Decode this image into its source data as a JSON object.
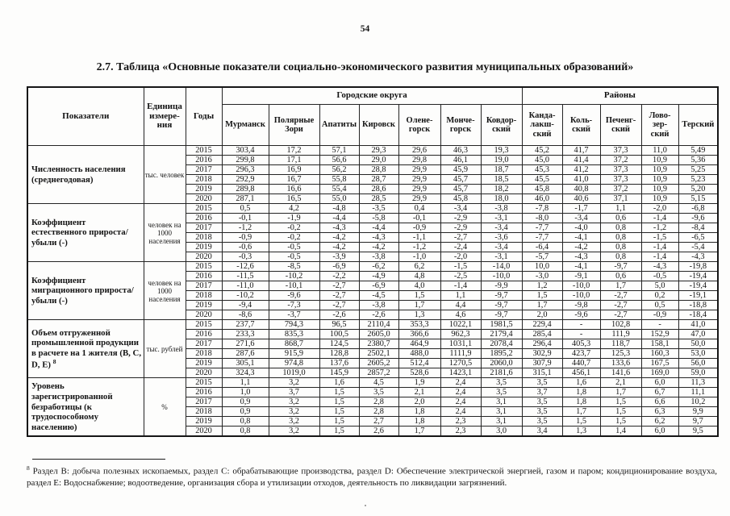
{
  "page": {
    "number": "54",
    "title": "2.7. Таблица «Основные показатели социально-экономического развития муниципальных образований»"
  },
  "table": {
    "head": {
      "indicators": "Показатели",
      "unit": "Единица\nизмере-\nния",
      "years": "Годы",
      "groups": [
        "Городские округа",
        "Районы"
      ]
    },
    "columns": [
      "Мурманск",
      "Полярные\nЗори",
      "Апатиты",
      "Кировск",
      "Олене-\nгорск",
      "Монче-\nгорск",
      "Ковдор-\nский",
      "Канда-\nлакш-\nский",
      "Коль-\nский",
      "Печенг-\nский",
      "Лово-\nзер-\nский",
      "Терский"
    ],
    "blocks": [
      {
        "indicator": "Численность населения (среднегодовая)",
        "unit": "тыс. человек",
        "rows": [
          {
            "year": "2015",
            "values": [
              "303,4",
              "17,2",
              "57,1",
              "29,3",
              "29,6",
              "46,3",
              "19,3",
              "45,2",
              "41,7",
              "37,3",
              "11,0",
              "5,49"
            ]
          },
          {
            "year": "2016",
            "values": [
              "299,8",
              "17,1",
              "56,6",
              "29,0",
              "29,8",
              "46,1",
              "19,0",
              "45,0",
              "41,4",
              "37,2",
              "10,9",
              "5,36"
            ]
          },
          {
            "year": "2017",
            "values": [
              "296,3",
              "16,9",
              "56,2",
              "28,8",
              "29,9",
              "45,9",
              "18,7",
              "45,3",
              "41,2",
              "37,3",
              "10,9",
              "5,25"
            ]
          },
          {
            "year": "2018",
            "values": [
              "292,9",
              "16,7",
              "55,8",
              "28,7",
              "29,9",
              "45,7",
              "18,5",
              "45,5",
              "41,0",
              "37,3",
              "10,9",
              "5,23"
            ]
          },
          {
            "year": "2019",
            "values": [
              "289,8",
              "16,6",
              "55,4",
              "28,6",
              "29,9",
              "45,7",
              "18,2",
              "45,8",
              "40,8",
              "37,2",
              "10,9",
              "5,20"
            ]
          },
          {
            "year": "2020",
            "values": [
              "287,1",
              "16,5",
              "55,0",
              "28,5",
              "29,9",
              "45,8",
              "18,0",
              "46,0",
              "40,6",
              "37,1",
              "10,9",
              "5,15"
            ]
          }
        ]
      },
      {
        "indicator": "Коэффициент естественного прироста/убыли (-)",
        "unit": "человек на 1000 населения",
        "rows": [
          {
            "year": "2015",
            "values": [
              "0,5",
              "4,2",
              "-4,8",
              "-3,5",
              "0,4",
              "-3,4",
              "-3,8",
              "-7,8",
              "-1,7",
              "1,1",
              "-2,0",
              "-6,8"
            ]
          },
          {
            "year": "2016",
            "values": [
              "-0,1",
              "-1,9",
              "-4,4",
              "-5,8",
              "-0,1",
              "-2,9",
              "-3,1",
              "-8,0",
              "-3,4",
              "0,6",
              "-1,4",
              "-9,6"
            ]
          },
          {
            "year": "2017",
            "values": [
              "-1,2",
              "-0,2",
              "-4,3",
              "-4,4",
              "-0,9",
              "-2,9",
              "-3,4",
              "-7,7",
              "-4,0",
              "0,8",
              "-1,2",
              "-8,4"
            ]
          },
          {
            "year": "2018",
            "values": [
              "-0,9",
              "-0,2",
              "-4,2",
              "-4,3",
              "-1,1",
              "-2,7",
              "-3,6",
              "-7,7",
              "-4,1",
              "0,8",
              "-1,5",
              "-6,5"
            ]
          },
          {
            "year": "2019",
            "values": [
              "-0,6",
              "-0,5",
              "-4,2",
              "-4,2",
              "-1,2",
              "-2,4",
              "-3,4",
              "-6,4",
              "-4,2",
              "0,8",
              "-1,4",
              "-5,4"
            ]
          },
          {
            "year": "2020",
            "values": [
              "-0,3",
              "-0,5",
              "-3,9",
              "-3,8",
              "-1,0",
              "-2,0",
              "-3,1",
              "-5,7",
              "-4,3",
              "0,8",
              "-1,4",
              "-4,3"
            ]
          }
        ]
      },
      {
        "indicator": "Коэффициент миграционного прироста/убыли (-)",
        "unit": "человек на 1000 населения",
        "rows": [
          {
            "year": "2015",
            "values": [
              "-12,6",
              "-8,5",
              "-6,9",
              "-6,2",
              "6,2",
              "-1,5",
              "-14,0",
              "10,0",
              "-4,1",
              "-9,7",
              "-4,3",
              "-19,8"
            ]
          },
          {
            "year": "2016",
            "values": [
              "-11,5",
              "-10,2",
              "-2,2",
              "-4,9",
              "4,8",
              "-2,5",
              "-10,0",
              "-3,0",
              "-9,1",
              "0,6",
              "-0,5",
              "-19,4"
            ]
          },
          {
            "year": "2017",
            "values": [
              "-11,0",
              "-10,1",
              "-2,7",
              "-6,9",
              "4,0",
              "-1,4",
              "-9,9",
              "1,2",
              "-10,0",
              "1,7",
              "5,0",
              "-19,4"
            ]
          },
          {
            "year": "2018",
            "values": [
              "-10,2",
              "-9,6",
              "-2,7",
              "-4,5",
              "1,5",
              "1,1",
              "-9,7",
              "1,5",
              "-10,0",
              "-2,7",
              "0,2",
              "-19,1"
            ]
          },
          {
            "year": "2019",
            "values": [
              "-9,4",
              "-7,3",
              "-2,7",
              "-3,8",
              "1,7",
              "4,4",
              "-9,7",
              "1,7",
              "-9,8",
              "-2,7",
              "0,5",
              "-18,8"
            ]
          },
          {
            "year": "2020",
            "values": [
              "-8,6",
              "-3,7",
              "-2,6",
              "-2,6",
              "1,3",
              "4,6",
              "-9,7",
              "2,0",
              "-9,6",
              "-2,7",
              "-0,9",
              "-18,4"
            ]
          }
        ]
      },
      {
        "indicator": "Объем отгруженной промышленной продукции в расчете на 1 жителя (B, C, D, Е)",
        "footnote_ref": "8",
        "unit": "тыс. рублей",
        "rows": [
          {
            "year": "2015",
            "values": [
              "237,7",
              "794,3",
              "96,5",
              "2110,4",
              "353,3",
              "1022,1",
              "1981,5",
              "229,4",
              "-",
              "102,8",
              "-",
              "41,0"
            ]
          },
          {
            "year": "2016",
            "values": [
              "233,3",
              "835,3",
              "100,5",
              "2605,0",
              "366,6",
              "962,3",
              "2179,4",
              "285,4",
              "-",
              "111,9",
              "152,9",
              "47,0"
            ]
          },
          {
            "year": "2017",
            "values": [
              "271,6",
              "868,7",
              "124,5",
              "2380,7",
              "464,9",
              "1031,1",
              "2078,4",
              "296,4",
              "405,3",
              "118,7",
              "158,1",
              "50,0"
            ]
          },
          {
            "year": "2018",
            "values": [
              "287,6",
              "915,9",
              "128,8",
              "2502,1",
              "488,0",
              "1111,9",
              "1895,2",
              "302,9",
              "423,7",
              "125,3",
              "160,3",
              "53,0"
            ]
          },
          {
            "year": "2019",
            "values": [
              "305,1",
              "974,8",
              "137,6",
              "2605,2",
              "512,4",
              "1270,5",
              "2060,0",
              "307,9",
              "440,7",
              "133,6",
              "167,5",
              "56,0"
            ]
          },
          {
            "year": "2020",
            "values": [
              "324,3",
              "1019,0",
              "145,9",
              "2857,2",
              "528,6",
              "1423,1",
              "2181,6",
              "315,1",
              "456,1",
              "141,6",
              "169,0",
              "59,0"
            ]
          }
        ]
      },
      {
        "indicator": "Уровень зарегистрированной безработицы (к трудоспособному населению)",
        "unit": "%",
        "rows": [
          {
            "year": "2015",
            "values": [
              "1,1",
              "3,2",
              "1,6",
              "4,5",
              "1,9",
              "2,4",
              "3,5",
              "3,5",
              "1,6",
              "2,1",
              "6,0",
              "11,3"
            ]
          },
          {
            "year": "2016",
            "values": [
              "1,0",
              "3,7",
              "1,5",
              "3,5",
              "2,1",
              "2,4",
              "3,5",
              "3,7",
              "1,8",
              "1,7",
              "6,7",
              "11,1"
            ]
          },
          {
            "year": "2017",
            "values": [
              "0,9",
              "3,2",
              "1,5",
              "2,8",
              "2,0",
              "2,4",
              "3,1",
              "3,5",
              "1,8",
              "1,5",
              "6,6",
              "10,2"
            ]
          },
          {
            "year": "2018",
            "values": [
              "0,9",
              "3,2",
              "1,5",
              "2,8",
              "1,8",
              "2,4",
              "3,1",
              "3,5",
              "1,7",
              "1,5",
              "6,3",
              "9,9"
            ]
          },
          {
            "year": "2019",
            "values": [
              "0,8",
              "3,2",
              "1,5",
              "2,7",
              "1,8",
              "2,3",
              "3,1",
              "3,5",
              "1,5",
              "1,5",
              "6,2",
              "9,7"
            ]
          },
          {
            "year": "2020",
            "values": [
              "0,8",
              "3,2",
              "1,5",
              "2,6",
              "1,7",
              "2,3",
              "3,0",
              "3,4",
              "1,3",
              "1,4",
              "6,0",
              "9,5"
            ]
          }
        ]
      }
    ]
  },
  "footnote": {
    "marker": "8",
    "text": "Раздел В: добыча полезных ископаемых, раздел С: обрабатывающие производства, раздел D: Обеспечение электрической энергией, газом и паром; кондиционирование воздуха, раздел Е: Водоснабжение; водоотведение, организация сбора и утилизации отходов, деятельность по ликвидации загрязнений."
  }
}
